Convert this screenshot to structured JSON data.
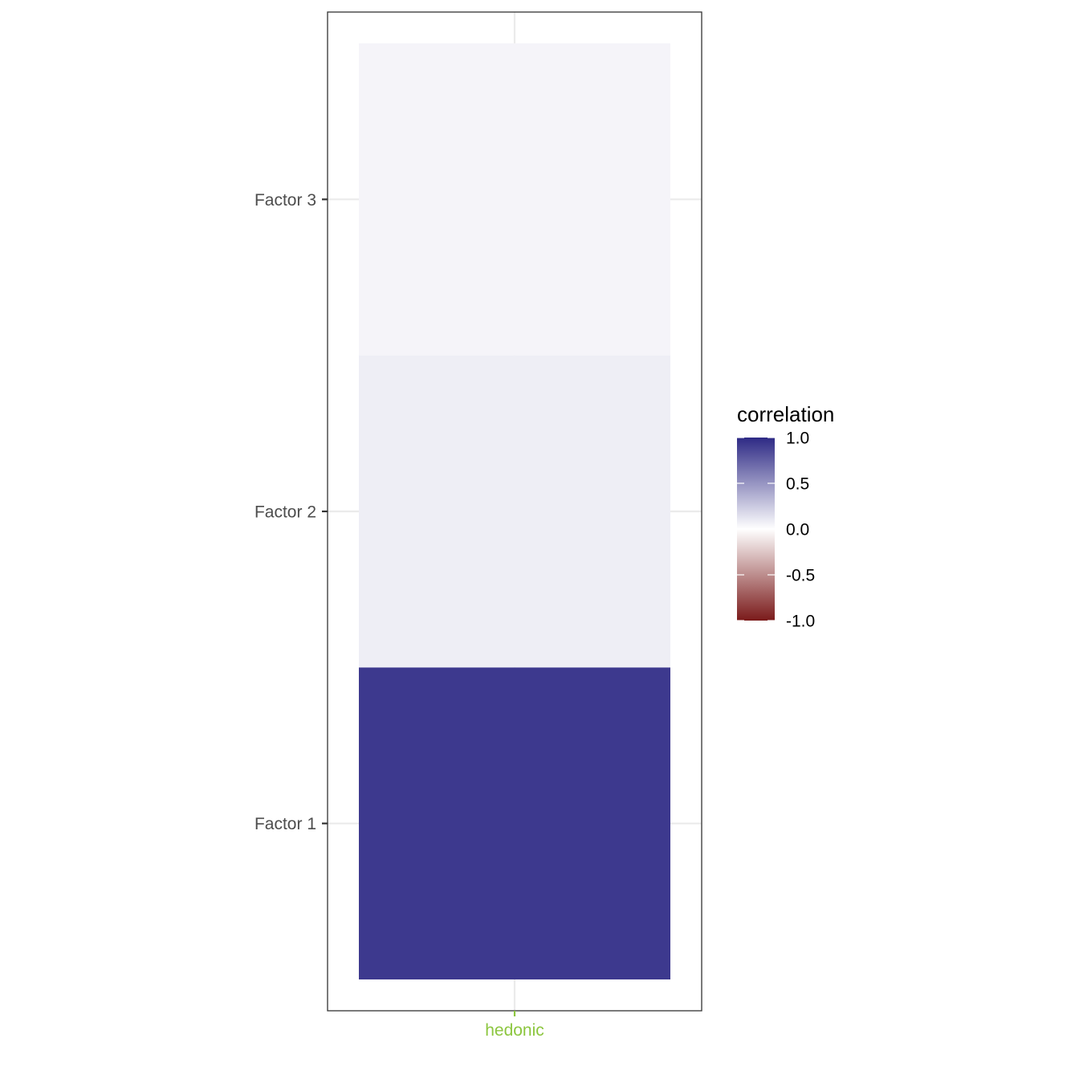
{
  "chart_data": {
    "type": "heatmap",
    "x_categories": [
      "hedonic"
    ],
    "y_categories": [
      "Factor 1",
      "Factor 2",
      "Factor 3"
    ],
    "cells": [
      {
        "x": "hedonic",
        "y": "Factor 1",
        "value": 0.93
      },
      {
        "x": "hedonic",
        "y": "Factor 2",
        "value": 0.08
      },
      {
        "x": "hedonic",
        "y": "Factor 3",
        "value": 0.05
      }
    ],
    "x_tick_color": "#8cc63f",
    "legend": {
      "title": "correlation",
      "placement": "right",
      "range": [
        -1.0,
        1.0
      ],
      "breaks": [
        1.0,
        0.5,
        0.0,
        -0.5,
        -1.0
      ],
      "break_labels": [
        "1.0",
        "0.5",
        "0.0",
        "-0.5",
        "-1.0"
      ],
      "low_color": "#7a1a1a",
      "mid_color": "#ffffff",
      "high_color": "#2e2a85"
    },
    "grid": true,
    "panel_border": true
  }
}
